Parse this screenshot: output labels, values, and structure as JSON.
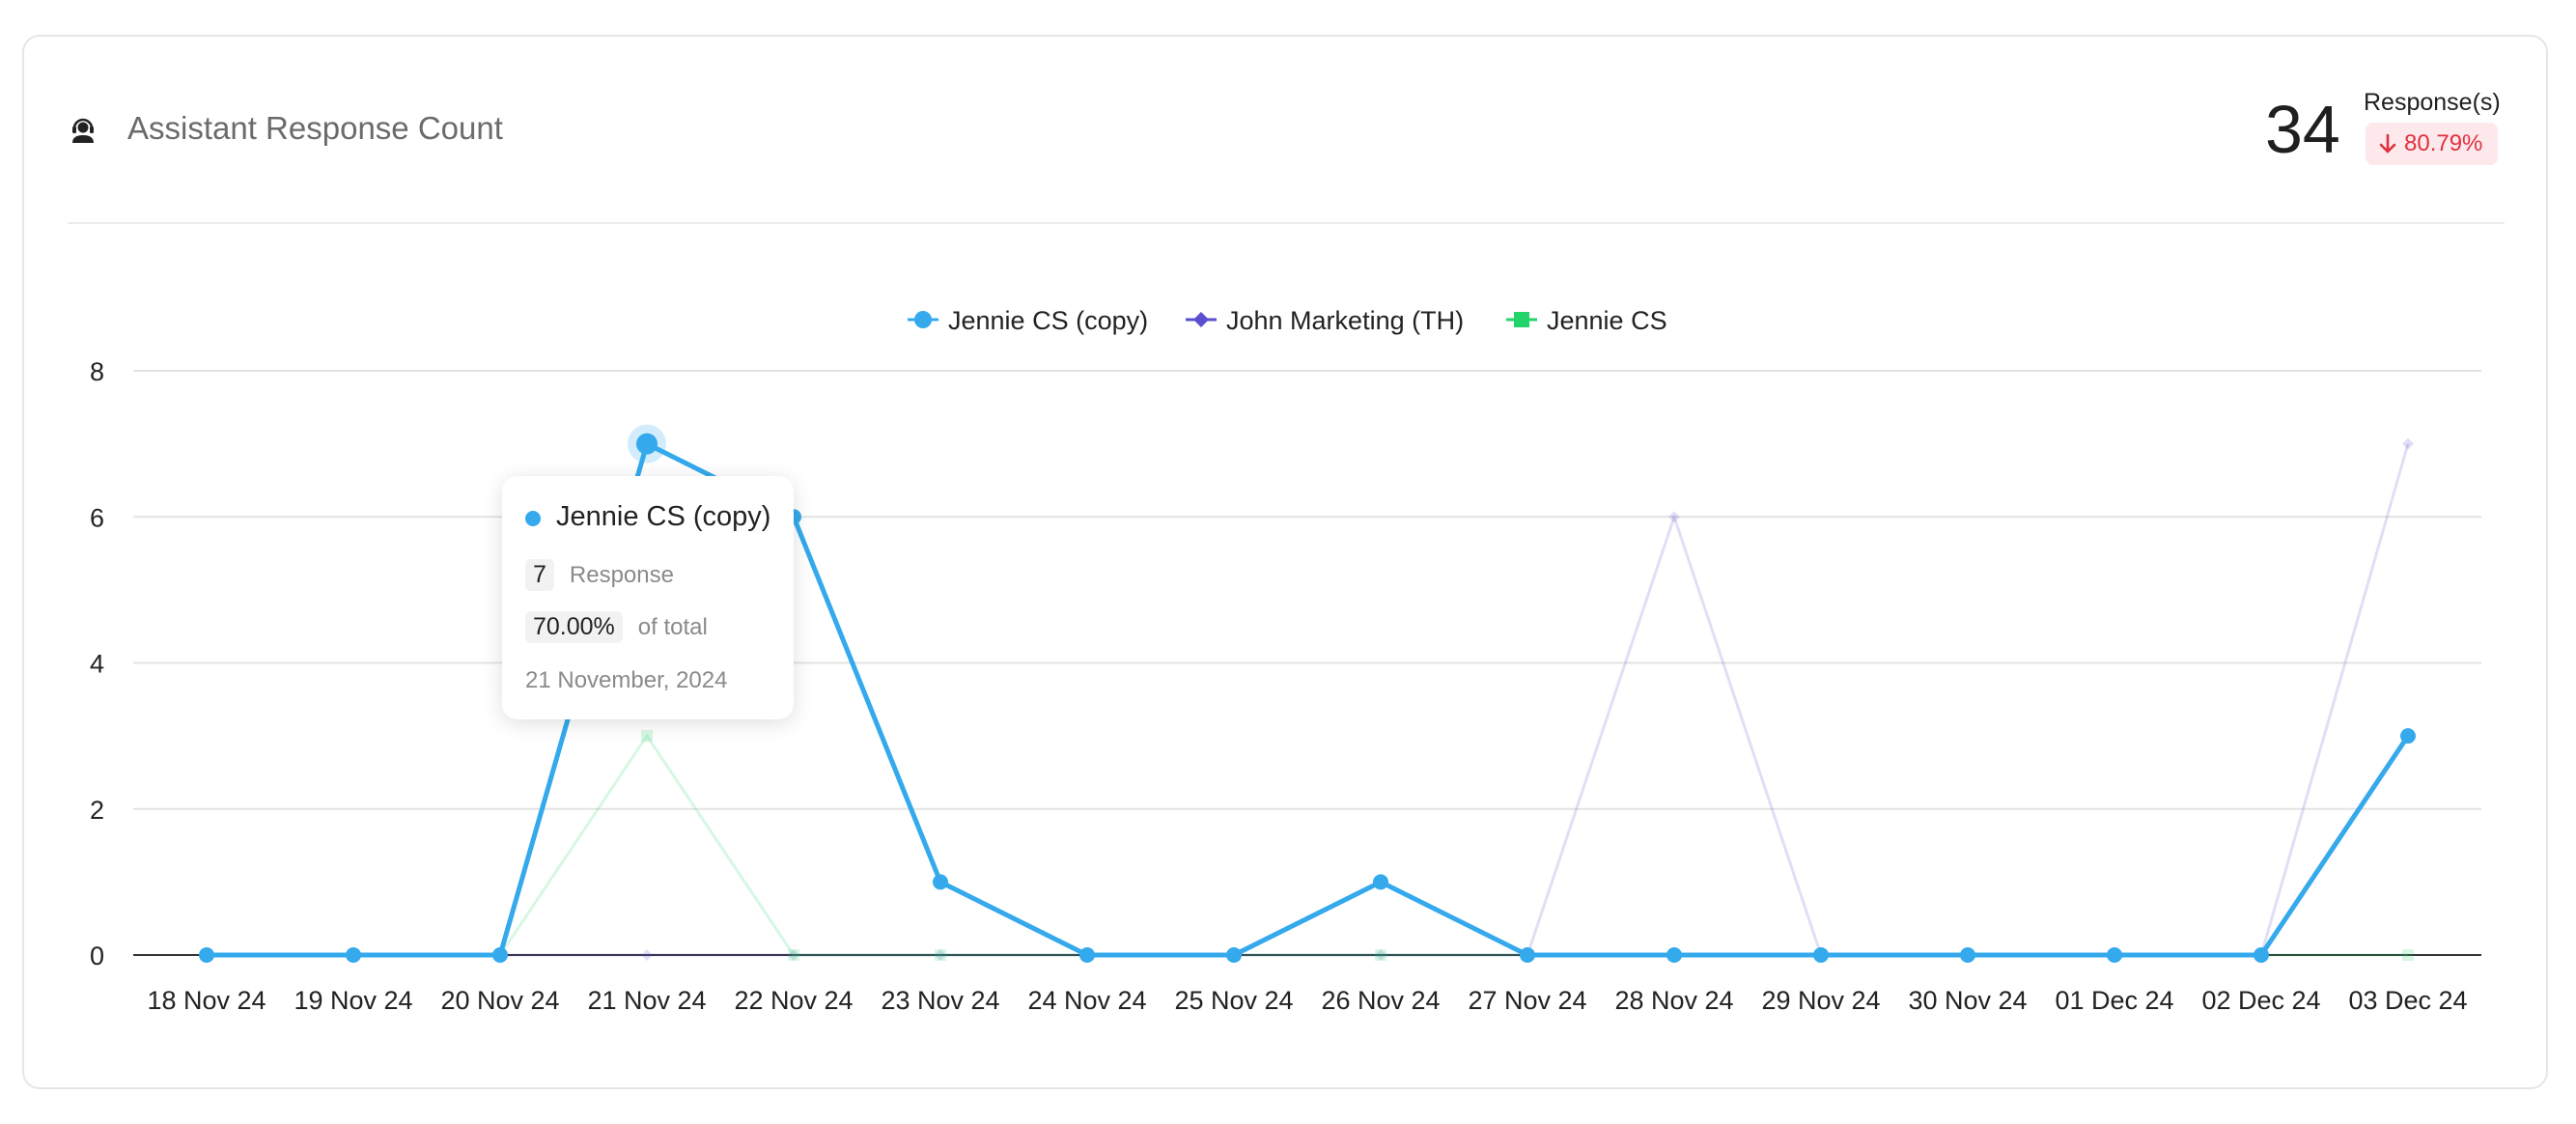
{
  "header": {
    "title": "Assistant Response Count",
    "icon": "headset-icon",
    "total_value": "34",
    "total_unit": "Response(s)",
    "change": "80.79%",
    "change_direction": "down",
    "change_color": "#e0303f"
  },
  "chart_data": {
    "type": "line",
    "categories": [
      "18 Nov 24",
      "19 Nov 24",
      "20 Nov 24",
      "21 Nov 24",
      "22 Nov 24",
      "23 Nov 24",
      "24 Nov 24",
      "25 Nov 24",
      "26 Nov 24",
      "27 Nov 24",
      "28 Nov 24",
      "29 Nov 24",
      "30 Nov 24",
      "01 Dec 24",
      "02 Dec 24",
      "03 Dec 24"
    ],
    "ylim": [
      0,
      8
    ],
    "yticks": [
      0,
      2,
      4,
      6,
      8
    ],
    "grid": true,
    "legend_position": "top-center",
    "series": [
      {
        "name": "Jennie CS (copy)",
        "marker": "circle",
        "color": "#34a9ec",
        "highlighted": true,
        "values": [
          0,
          0,
          0,
          7,
          6,
          1,
          0,
          0,
          1,
          0,
          0,
          0,
          0,
          0,
          0,
          3
        ]
      },
      {
        "name": "John Marketing (TH)",
        "marker": "diamond",
        "color": "#5b4fcf",
        "highlighted": false,
        "values": [
          0,
          0,
          0,
          0,
          0,
          0,
          0,
          0,
          0,
          0,
          6,
          0,
          0,
          0,
          0,
          7
        ]
      },
      {
        "name": "Jennie CS",
        "marker": "square",
        "color": "#22d46a",
        "highlighted": false,
        "values": [
          0,
          0,
          0,
          3,
          0,
          0,
          0,
          0,
          0,
          0,
          0,
          0,
          0,
          0,
          0,
          0
        ]
      }
    ]
  },
  "tooltip": {
    "series": "Jennie CS (copy)",
    "color": "#34a9ec",
    "value": "7",
    "value_label": "Response",
    "percent": "70.00%",
    "percent_label": "of total",
    "date": "21 November, 2024"
  }
}
